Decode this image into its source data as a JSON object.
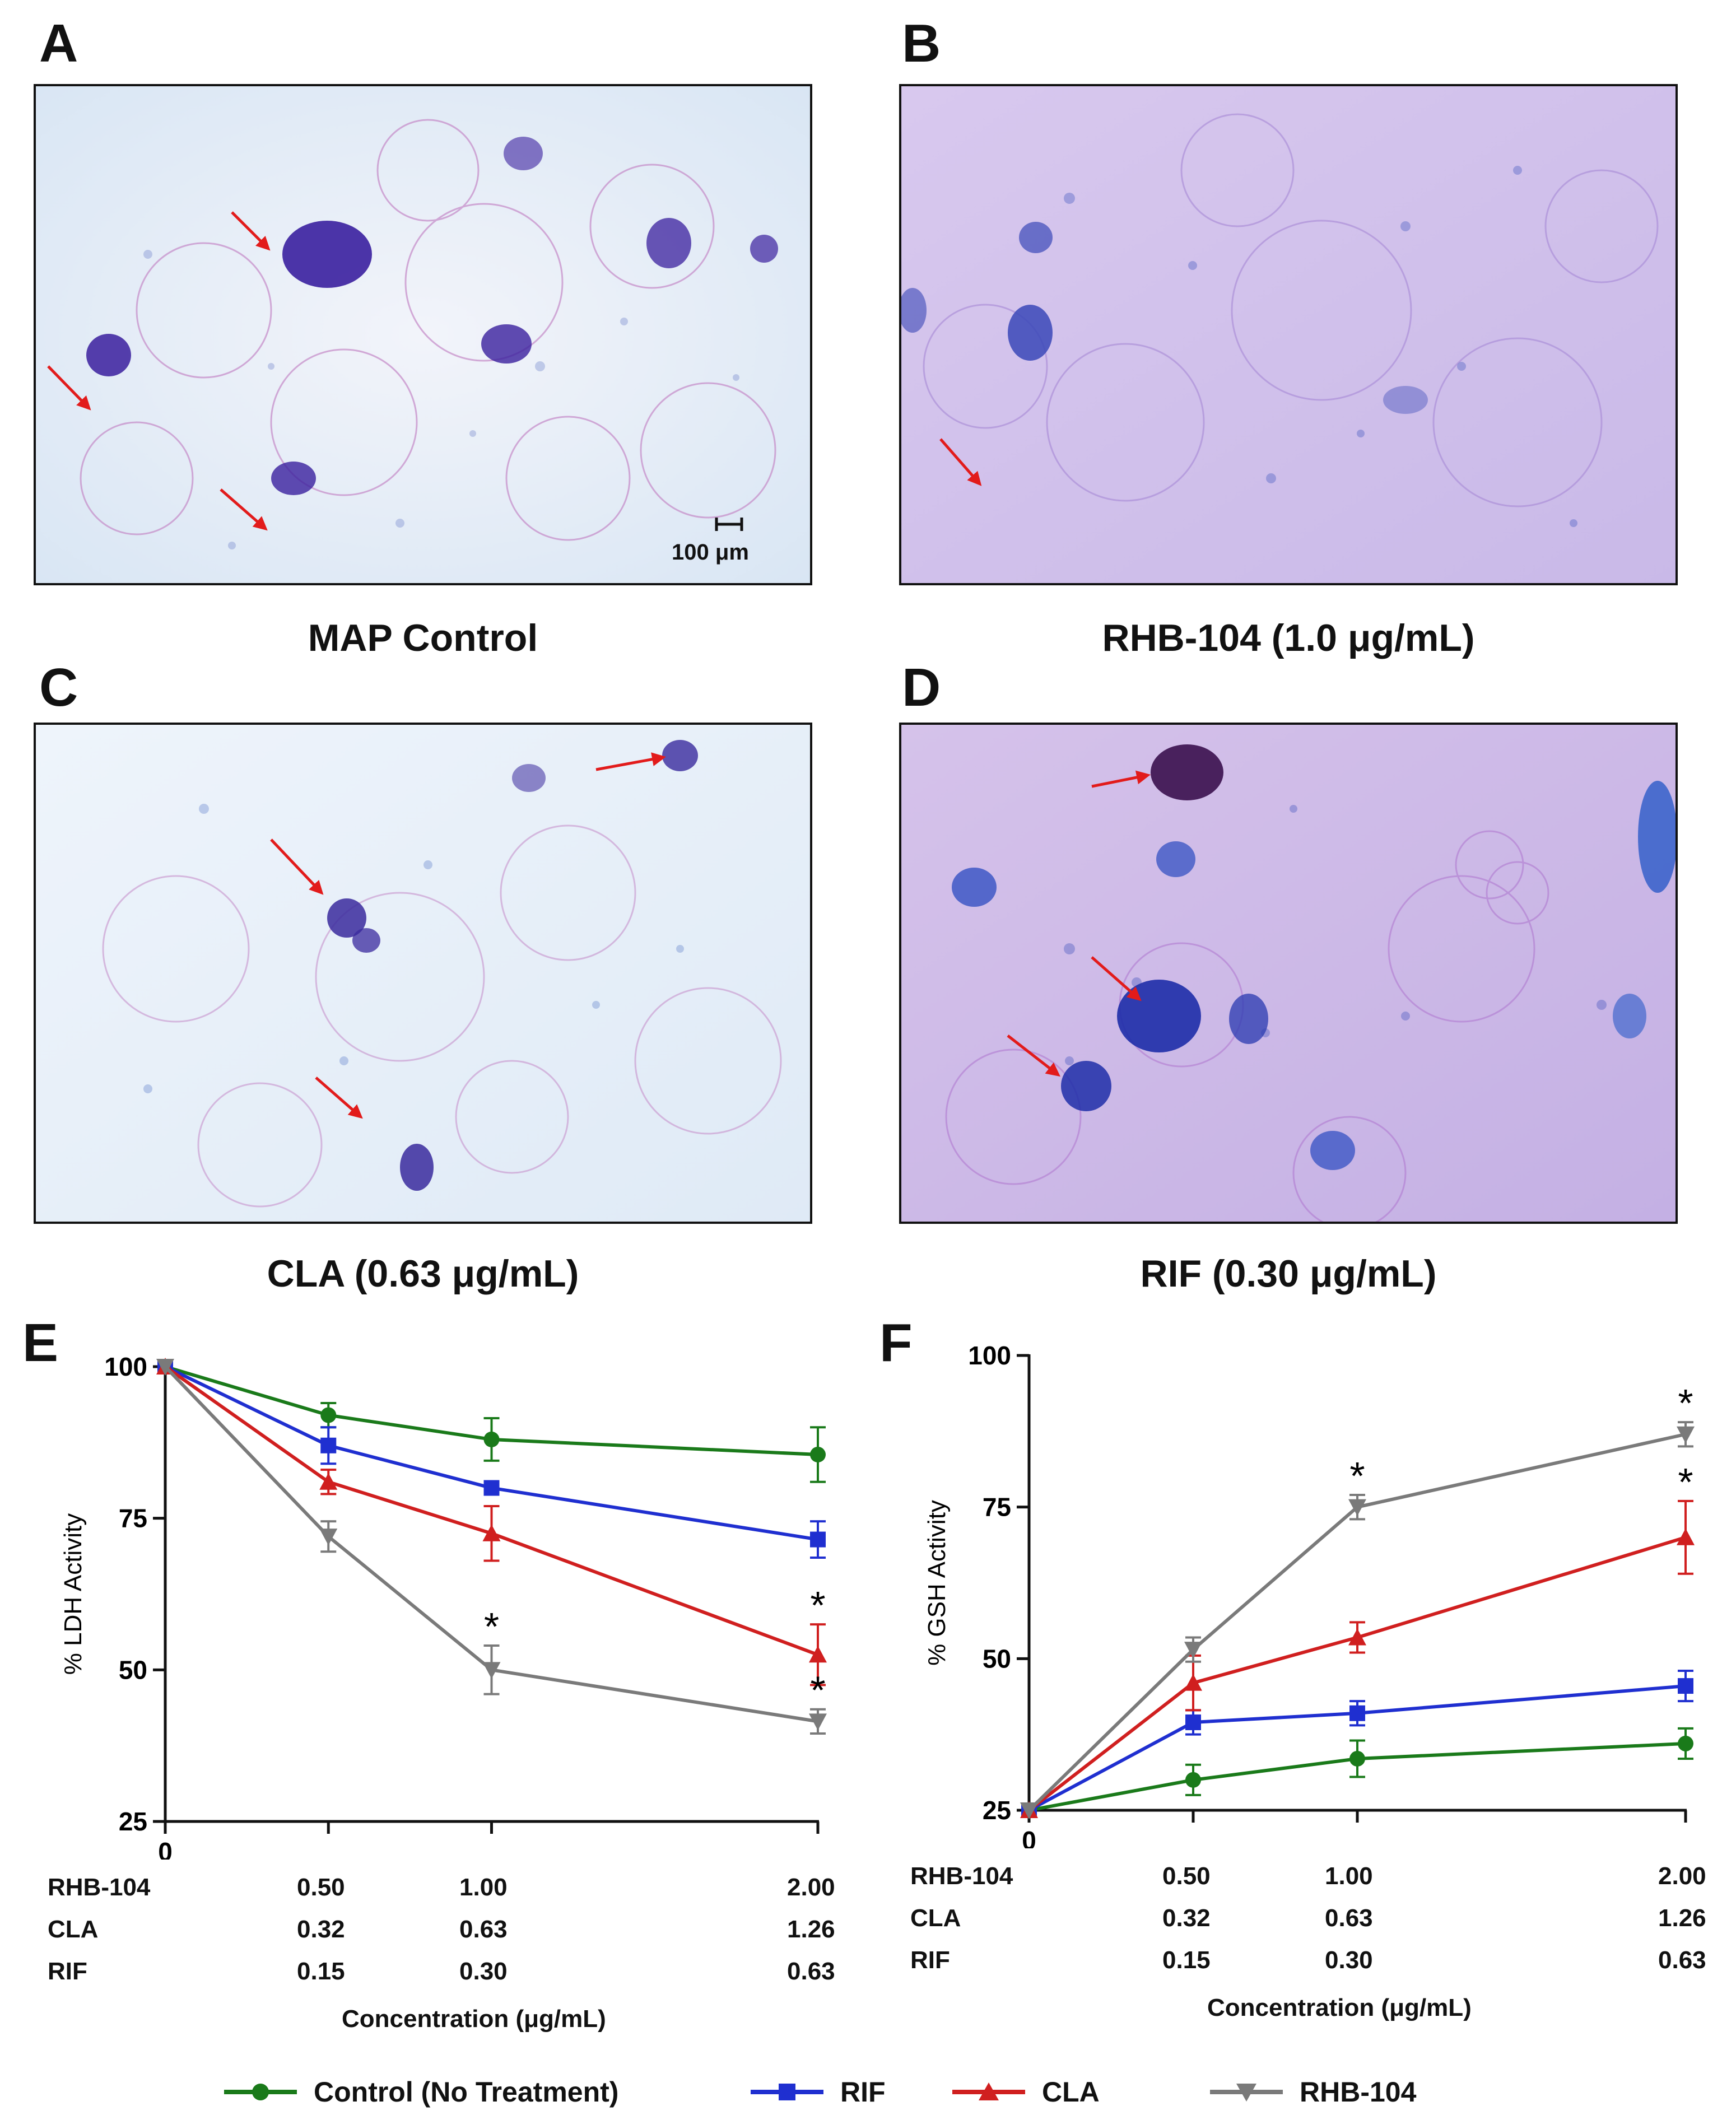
{
  "panels": {
    "A": {
      "letter": "A",
      "caption": "MAP Control",
      "scale_bar": "100 μm"
    },
    "B": {
      "letter": "B",
      "caption": "RHB-104 (1.0 μg/mL)"
    },
    "C": {
      "letter": "C",
      "caption": "CLA (0.63 μg/mL)"
    },
    "D": {
      "letter": "D",
      "caption": "RIF (0.30 μg/mL)"
    },
    "E": {
      "letter": "E"
    },
    "F": {
      "letter": "F"
    }
  },
  "concentration_table": {
    "rows": [
      {
        "drug": "RHB-104",
        "values": [
          "0.50",
          "1.00",
          "2.00"
        ]
      },
      {
        "drug": "CLA",
        "values": [
          "0.32",
          "0.63",
          "1.26"
        ]
      },
      {
        "drug": "RIF",
        "values": [
          "0.15",
          "0.30",
          "0.63"
        ]
      }
    ],
    "axis_title": "Concentration (μg/mL)"
  },
  "legend": [
    {
      "name": "Control (No Treatment)",
      "color": "#1a7a1a",
      "marker": "circle"
    },
    {
      "name": "RIF",
      "color": "#1f2fd0",
      "marker": "square"
    },
    {
      "name": "CLA",
      "color": "#d01f1f",
      "marker": "triangle-up"
    },
    {
      "name": "RHB-104",
      "color": "#7a7a7a",
      "marker": "triangle-down"
    }
  ],
  "chart_data": [
    {
      "panel": "E",
      "type": "line",
      "title": "",
      "ylabel": "% LDH Activity",
      "xlabel": "Concentration (μg/mL)",
      "x": [
        0,
        1,
        2,
        4
      ],
      "x_tick_labels": [
        "0",
        "",
        "",
        ""
      ],
      "ylim": [
        25,
        100
      ],
      "y_ticks": [
        25,
        50,
        75,
        100
      ],
      "series": [
        {
          "name": "Control (No Treatment)",
          "values": [
            100,
            92,
            88,
            85.5
          ],
          "errors": [
            0,
            2,
            3.5,
            4.5
          ]
        },
        {
          "name": "RIF",
          "values": [
            100,
            87,
            80,
            71.5
          ],
          "errors": [
            0,
            3,
            0,
            3
          ]
        },
        {
          "name": "CLA",
          "values": [
            100,
            81,
            72.5,
            52.5
          ],
          "errors": [
            0,
            2,
            4.5,
            5
          ]
        },
        {
          "name": "RHB-104",
          "values": [
            100,
            72,
            50,
            41.5
          ],
          "errors": [
            0,
            2.5,
            4,
            2
          ]
        }
      ],
      "annotations": [
        {
          "text": "*",
          "series": "RHB-104",
          "x": 2
        },
        {
          "text": "*",
          "series": "CLA",
          "x": 4
        },
        {
          "text": "*",
          "series": "RHB-104",
          "x": 4
        }
      ]
    },
    {
      "panel": "F",
      "type": "line",
      "title": "",
      "ylabel": "% GSH Activity",
      "xlabel": "Concentration (μg/mL)",
      "x": [
        0,
        1,
        2,
        4
      ],
      "x_tick_labels": [
        "0",
        "",
        "",
        ""
      ],
      "ylim": [
        25,
        100
      ],
      "y_ticks": [
        25,
        50,
        75,
        100
      ],
      "series": [
        {
          "name": "Control (No Treatment)",
          "values": [
            25,
            30,
            33.5,
            36
          ],
          "errors": [
            0,
            2.5,
            3,
            2.5
          ]
        },
        {
          "name": "RIF",
          "values": [
            25,
            39.5,
            41,
            45.5
          ],
          "errors": [
            0,
            2,
            2,
            2.5
          ]
        },
        {
          "name": "CLA",
          "values": [
            25,
            46,
            53.5,
            70
          ],
          "errors": [
            0,
            4.5,
            2.5,
            6
          ]
        },
        {
          "name": "RHB-104",
          "values": [
            25,
            51.5,
            75,
            87
          ],
          "errors": [
            0,
            2,
            2,
            2
          ]
        }
      ],
      "annotations": [
        {
          "text": "*",
          "series": "RHB-104",
          "x": 2
        },
        {
          "text": "*",
          "series": "CLA",
          "x": 4
        },
        {
          "text": "*",
          "series": "RHB-104",
          "x": 4
        }
      ]
    }
  ]
}
